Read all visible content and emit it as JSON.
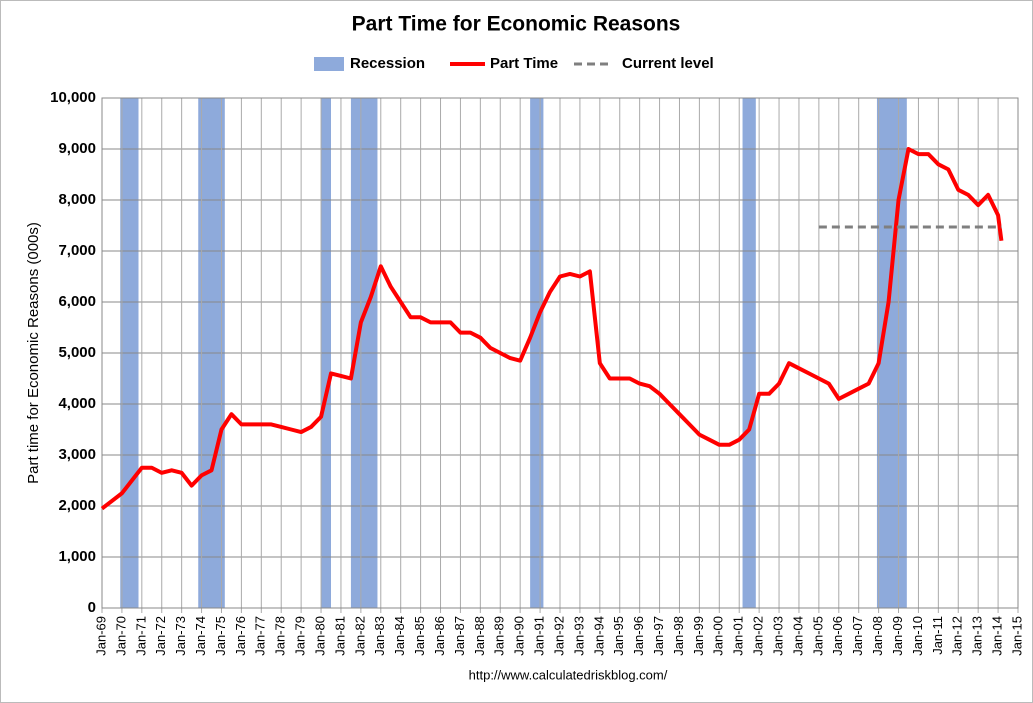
{
  "chart_data": {
    "type": "line",
    "title": "Part Time for Economic Reasons",
    "y_label": "Part time for Economic Reasons (000s)",
    "source": "http://www.calculatedriskblog.com/",
    "recessions": {
      "name": "Recession",
      "color": "#8eaadb",
      "periods": [
        [
          "1969-12",
          "1970-11"
        ],
        [
          "1973-11",
          "1975-03"
        ],
        [
          "1980-01",
          "1980-07"
        ],
        [
          "1981-07",
          "1982-11"
        ],
        [
          "1990-07",
          "1991-03"
        ],
        [
          "2001-03",
          "2001-11"
        ],
        [
          "2007-12",
          "2009-06"
        ]
      ]
    },
    "series": [
      {
        "name": "Part Time",
        "color": "#ff0000",
        "x": [
          "1969-01",
          "1969-07",
          "1970-01",
          "1970-07",
          "1971-01",
          "1971-07",
          "1972-01",
          "1972-07",
          "1973-01",
          "1973-07",
          "1974-01",
          "1974-07",
          "1975-01",
          "1975-07",
          "1976-01",
          "1976-07",
          "1977-01",
          "1977-07",
          "1978-01",
          "1978-07",
          "1979-01",
          "1979-07",
          "1980-01",
          "1980-07",
          "1981-01",
          "1981-07",
          "1982-01",
          "1982-07",
          "1983-01",
          "1983-07",
          "1984-01",
          "1984-07",
          "1985-01",
          "1985-07",
          "1986-01",
          "1986-07",
          "1987-01",
          "1987-07",
          "1988-01",
          "1988-07",
          "1989-01",
          "1989-07",
          "1990-01",
          "1990-07",
          "1991-01",
          "1991-07",
          "1992-01",
          "1992-07",
          "1993-01",
          "1993-07",
          "1994-01",
          "1994-07",
          "1995-01",
          "1995-07",
          "1996-01",
          "1996-07",
          "1997-01",
          "1997-07",
          "1998-01",
          "1998-07",
          "1999-01",
          "1999-07",
          "2000-01",
          "2000-07",
          "2001-01",
          "2001-07",
          "2002-01",
          "2002-07",
          "2003-01",
          "2003-07",
          "2004-01",
          "2004-07",
          "2005-01",
          "2005-07",
          "2006-01",
          "2006-07",
          "2007-01",
          "2007-07",
          "2008-01",
          "2008-07",
          "2009-01",
          "2009-07",
          "2010-01",
          "2010-07",
          "2011-01",
          "2011-07",
          "2012-01",
          "2012-07",
          "2013-01",
          "2013-07",
          "2014-01",
          "2014-03"
        ],
        "values": [
          1950,
          2100,
          2250,
          2500,
          2750,
          2750,
          2650,
          2700,
          2650,
          2400,
          2600,
          2700,
          3500,
          3800,
          3600,
          3600,
          3600,
          3600,
          3550,
          3500,
          3450,
          3550,
          3750,
          4600,
          4550,
          4500,
          5600,
          6100,
          6700,
          6300,
          6000,
          5700,
          5700,
          5600,
          5600,
          5600,
          5400,
          5400,
          5300,
          5100,
          5000,
          4900,
          4850,
          5300,
          5800,
          6200,
          6500,
          6550,
          6500,
          6600,
          4800,
          4500,
          4500,
          4500,
          4400,
          4350,
          4200,
          4000,
          3800,
          3600,
          3400,
          3300,
          3200,
          3200,
          3300,
          3500,
          4200,
          4200,
          4400,
          4800,
          4700,
          4600,
          4500,
          4400,
          4100,
          4200,
          4300,
          4400,
          4800,
          6000,
          8000,
          9000,
          8900,
          8900,
          8700,
          8600,
          8200,
          8100,
          7900,
          8100,
          7700,
          7200
        ]
      },
      {
        "name": "Current level",
        "color": "#7f7f7f",
        "style": "dashed",
        "x": [
          "2005-01",
          "2014-03"
        ],
        "values": [
          7470,
          7470
        ]
      }
    ],
    "xlim": [
      "1969-01",
      "2015-01"
    ],
    "xticks": [
      {
        "value": "1969-01",
        "label": "Jan-69"
      },
      {
        "value": "1970-01",
        "label": "Jan-70"
      },
      {
        "value": "1971-01",
        "label": "Jan-71"
      },
      {
        "value": "1972-01",
        "label": "Jan-72"
      },
      {
        "value": "1973-01",
        "label": "Jan-73"
      },
      {
        "value": "1974-01",
        "label": "Jan-74"
      },
      {
        "value": "1975-01",
        "label": "Jan-75"
      },
      {
        "value": "1976-01",
        "label": "Jan-76"
      },
      {
        "value": "1977-01",
        "label": "Jan-77"
      },
      {
        "value": "1978-01",
        "label": "Jan-78"
      },
      {
        "value": "1979-01",
        "label": "Jan-79"
      },
      {
        "value": "1980-01",
        "label": "Jan-80"
      },
      {
        "value": "1981-01",
        "label": "Jan-81"
      },
      {
        "value": "1982-01",
        "label": "Jan-82"
      },
      {
        "value": "1983-01",
        "label": "Jan-83"
      },
      {
        "value": "1984-01",
        "label": "Jan-84"
      },
      {
        "value": "1985-01",
        "label": "Jan-85"
      },
      {
        "value": "1986-01",
        "label": "Jan-86"
      },
      {
        "value": "1987-01",
        "label": "Jan-87"
      },
      {
        "value": "1988-01",
        "label": "Jan-88"
      },
      {
        "value": "1989-01",
        "label": "Jan-89"
      },
      {
        "value": "1990-01",
        "label": "Jan-90"
      },
      {
        "value": "1991-01",
        "label": "Jan-91"
      },
      {
        "value": "1992-01",
        "label": "Jan-92"
      },
      {
        "value": "1993-01",
        "label": "Jan-93"
      },
      {
        "value": "1994-01",
        "label": "Jan-94"
      },
      {
        "value": "1995-01",
        "label": "Jan-95"
      },
      {
        "value": "1996-01",
        "label": "Jan-96"
      },
      {
        "value": "1997-01",
        "label": "Jan-97"
      },
      {
        "value": "1998-01",
        "label": "Jan-98"
      },
      {
        "value": "1999-01",
        "label": "Jan-99"
      },
      {
        "value": "2000-01",
        "label": "Jan-00"
      },
      {
        "value": "2001-01",
        "label": "Jan-01"
      },
      {
        "value": "2002-01",
        "label": "Jan-02"
      },
      {
        "value": "2003-01",
        "label": "Jan-03"
      },
      {
        "value": "2004-01",
        "label": "Jan-04"
      },
      {
        "value": "2005-01",
        "label": "Jan-05"
      },
      {
        "value": "2006-01",
        "label": "Jan-06"
      },
      {
        "value": "2007-01",
        "label": "Jan-07"
      },
      {
        "value": "2008-01",
        "label": "Jan-08"
      },
      {
        "value": "2009-01",
        "label": "Jan-09"
      },
      {
        "value": "2010-01",
        "label": "Jan-10"
      },
      {
        "value": "2011-01",
        "label": "Jan-11"
      },
      {
        "value": "2012-01",
        "label": "Jan-12"
      },
      {
        "value": "2013-01",
        "label": "Jan-13"
      },
      {
        "value": "2014-01",
        "label": "Jan-14"
      },
      {
        "value": "2015-01",
        "label": "Jan-15"
      }
    ],
    "ylim": [
      0,
      10000
    ],
    "yticks": [
      0,
      {
        "value": 1000,
        "label": "1,000"
      },
      {
        "value": 2000,
        "label": "2,000"
      },
      {
        "value": 3000,
        "label": "3,000"
      },
      {
        "value": 4000,
        "label": "4,000"
      },
      {
        "value": 5000,
        "label": "5,000"
      },
      {
        "value": 6000,
        "label": "6,000"
      },
      {
        "value": 7000,
        "label": "7,000"
      },
      {
        "value": 8000,
        "label": "8,000"
      },
      {
        "value": 9000,
        "label": "9,000"
      },
      {
        "value": 10000,
        "label": "10,000"
      }
    ],
    "grid": true
  }
}
